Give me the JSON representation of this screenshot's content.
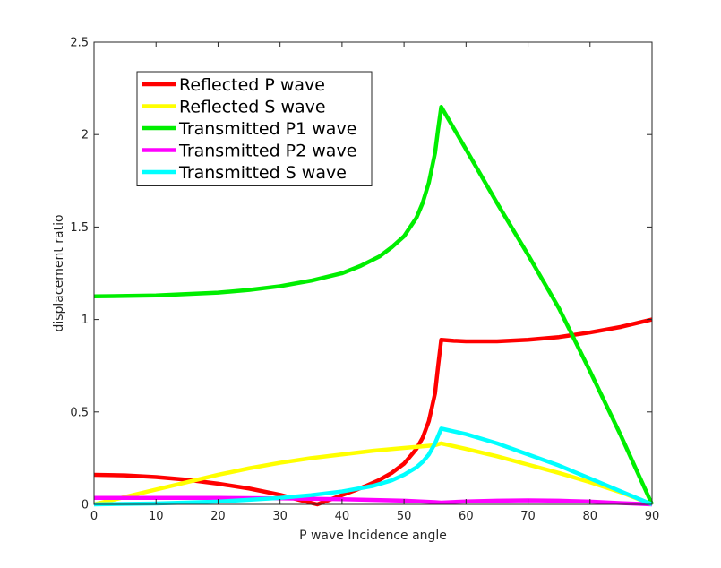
{
  "chart_data": {
    "type": "line",
    "title": "",
    "xlabel": "P wave Incidence angle",
    "ylabel": "displacement ratio",
    "xlim": [
      0,
      90
    ],
    "ylim": [
      0,
      2.5
    ],
    "x_ticks": [
      0,
      10,
      20,
      30,
      40,
      50,
      60,
      70,
      80,
      90
    ],
    "x_tick_labels": [
      "0",
      "10",
      "20",
      "30",
      "40",
      "50",
      "60",
      "70",
      "80",
      "90"
    ],
    "y_ticks": [
      0,
      0.5,
      1,
      1.5,
      2,
      2.5
    ],
    "y_tick_labels": [
      "0",
      "0.5",
      "1",
      "1.5",
      "2",
      "2.5"
    ],
    "grid": false,
    "legend_position": "top-left",
    "series": [
      {
        "name": "Reflected P wave",
        "color": "#ff0000",
        "x": [
          0,
          5,
          10,
          15,
          20,
          25,
          30,
          33,
          36,
          38,
          40,
          42,
          44,
          46,
          48,
          50,
          52,
          53,
          54,
          55,
          55.5,
          56,
          58,
          60,
          65,
          70,
          75,
          80,
          85,
          90
        ],
        "y": [
          0.16,
          0.157,
          0.148,
          0.133,
          0.112,
          0.086,
          0.052,
          0.025,
          0.0,
          0.025,
          0.05,
          0.075,
          0.102,
          0.132,
          0.17,
          0.22,
          0.3,
          0.36,
          0.45,
          0.6,
          0.75,
          0.89,
          0.885,
          0.882,
          0.882,
          0.89,
          0.905,
          0.93,
          0.96,
          1.0
        ]
      },
      {
        "name": "Reflected S wave",
        "color": "#ffff00",
        "x": [
          0,
          5,
          10,
          15,
          20,
          25,
          30,
          35,
          40,
          45,
          50,
          55,
          56,
          60,
          65,
          70,
          75,
          80,
          85,
          90
        ],
        "y": [
          0.0,
          0.04,
          0.08,
          0.12,
          0.16,
          0.195,
          0.225,
          0.25,
          0.27,
          0.29,
          0.305,
          0.32,
          0.33,
          0.3,
          0.26,
          0.215,
          0.17,
          0.12,
          0.065,
          0.0
        ]
      },
      {
        "name": "Transmitted P1 wave",
        "color": "#00ee00",
        "x": [
          0,
          10,
          20,
          25,
          30,
          35,
          40,
          43,
          46,
          48,
          50,
          52,
          53,
          54,
          55,
          55.5,
          56,
          60,
          65,
          70,
          75,
          80,
          85,
          90
        ],
        "y": [
          1.125,
          1.13,
          1.145,
          1.16,
          1.18,
          1.21,
          1.25,
          1.29,
          1.34,
          1.39,
          1.45,
          1.55,
          1.63,
          1.74,
          1.9,
          2.03,
          2.15,
          1.92,
          1.63,
          1.35,
          1.06,
          0.72,
          0.37,
          0.0
        ]
      },
      {
        "name": "Transmitted P2 wave",
        "color": "#ff00ff",
        "x": [
          0,
          10,
          20,
          30,
          40,
          50,
          55,
          56,
          60,
          65,
          70,
          75,
          80,
          85,
          90
        ],
        "y": [
          0.035,
          0.035,
          0.035,
          0.033,
          0.028,
          0.02,
          0.012,
          0.01,
          0.016,
          0.02,
          0.022,
          0.02,
          0.015,
          0.007,
          0.0
        ]
      },
      {
        "name": "Transmitted S wave",
        "color": "#00ffff",
        "x": [
          0,
          10,
          20,
          25,
          30,
          35,
          40,
          45,
          48,
          50,
          52,
          53,
          54,
          55,
          55.5,
          56,
          60,
          65,
          70,
          75,
          80,
          85,
          90
        ],
        "y": [
          0.0,
          0.005,
          0.015,
          0.025,
          0.035,
          0.05,
          0.07,
          0.1,
          0.13,
          0.16,
          0.2,
          0.23,
          0.27,
          0.33,
          0.37,
          0.41,
          0.38,
          0.33,
          0.27,
          0.21,
          0.14,
          0.07,
          0.0
        ]
      }
    ]
  }
}
